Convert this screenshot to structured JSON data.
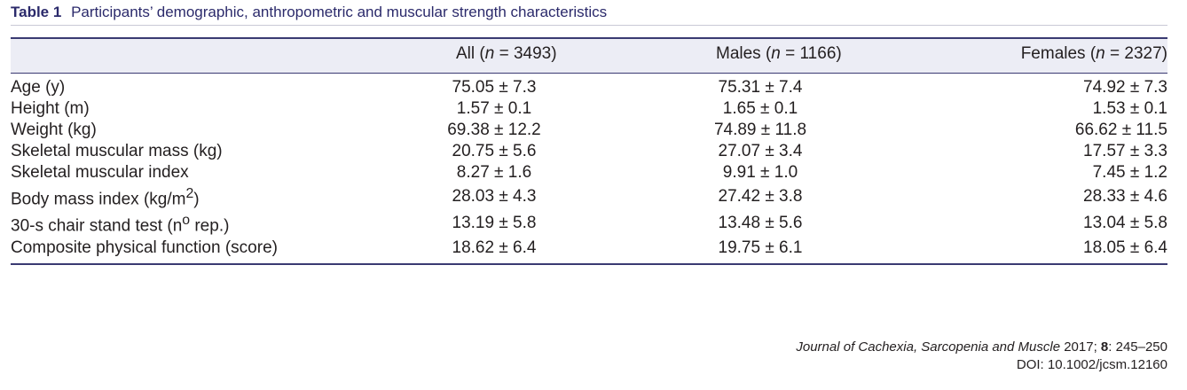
{
  "caption": {
    "label": "Table 1",
    "title": "Participants’ demographic, anthropometric and muscular strength characteristics"
  },
  "columns": [
    {
      "prefix": "All (",
      "n_symbol": "n",
      "suffix": " = 3493)"
    },
    {
      "prefix": "Males (",
      "n_symbol": "n",
      "suffix": " = 1166)"
    },
    {
      "prefix": "Females (",
      "n_symbol": "n",
      "suffix": " = 2327)"
    }
  ],
  "rows": [
    {
      "label": "Age (y)",
      "all": "75.05 ± 7.3",
      "males": "75.31 ± 7.4",
      "females": "74.92 ± 7.3"
    },
    {
      "label": "Height (m)",
      "all": "1.57 ± 0.1",
      "males": "1.65 ± 0.1",
      "females": "1.53 ± 0.1"
    },
    {
      "label": "Weight (kg)",
      "all": "69.38 ± 12.2",
      "males": "74.89 ± 11.8",
      "females": "66.62 ± 11.5"
    },
    {
      "label": "Skeletal muscular mass (kg)",
      "all": "20.75 ± 5.6",
      "males": "27.07 ± 3.4",
      "females": "17.57 ± 3.3"
    },
    {
      "label": "Skeletal muscular index",
      "all": "8.27 ± 1.6",
      "males": "9.91 ± 1.0",
      "females": "7.45 ± 1.2"
    },
    {
      "label": "Body mass index (kg/m",
      "label_sup": "2",
      "label_tail": ")",
      "all": "28.03 ± 4.3",
      "males": "27.42 ± 3.8",
      "females": "28.33 ± 4.6"
    },
    {
      "label": "30-s chair stand test (n",
      "label_sup": "o",
      "label_tail": " rep.)",
      "all": "13.19 ± 5.8",
      "males": "13.48 ± 5.6",
      "females": "13.04 ± 5.8"
    },
    {
      "label": "Composite physical function (score)",
      "all": "18.62 ± 6.4",
      "males": "19.75 ± 6.1",
      "females": "18.05 ± 6.4"
    }
  ],
  "footer": {
    "journal": "Journal of Cachexia, Sarcopenia and Muscle",
    "year": " 2017; ",
    "volume": "8",
    "pages": ": 245–250",
    "doi": "DOI: 10.1002/jcsm.12160"
  }
}
